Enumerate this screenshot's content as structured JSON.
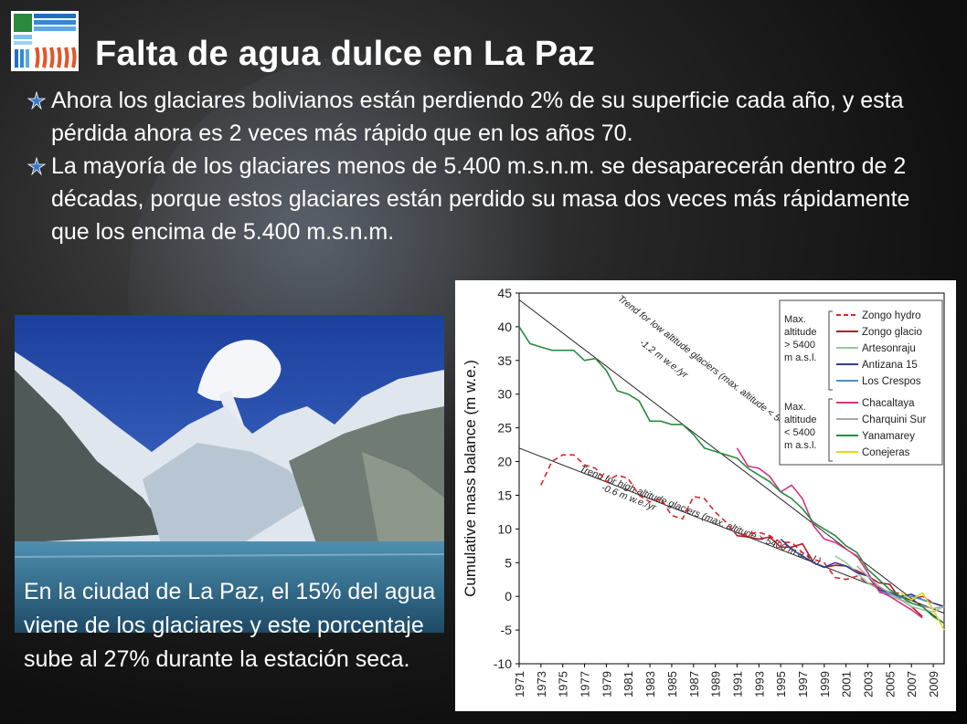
{
  "slide": {
    "title": "Falta de agua dulce en La Paz",
    "bullets": [
      {
        "text": "Ahora los glaciares bolivianos están perdiendo 2% de su superficie cada año, y esta pérdida ahora es 2 veces más rápido que en los años 70."
      },
      {
        "text": "La mayoría de los glaciares menos de 5.400 m.s.n.m. se desaparecerán dentro de 2 décadas, porque estos glaciares están perdido su masa dos veces más rápidamente que los encima de 5.400 m.s.n.m."
      }
    ],
    "caption": "En la ciudad de La Paz, el 15% del agua viene de los glaciares y este porcentaje sube al 27% durante la estación seca."
  },
  "colors": {
    "bullet_star": "#3a78c8",
    "text": "#ffffff"
  },
  "chart_data": {
    "type": "line",
    "ylabel": "Cumulative mass balance (m w.e.)",
    "xlabel": "",
    "ylim": [
      -10,
      45
    ],
    "yticks": [
      -10,
      -5,
      0,
      5,
      10,
      15,
      20,
      25,
      30,
      35,
      40,
      45
    ],
    "xticks": [
      "1971",
      "1973",
      "1975",
      "1977",
      "1979",
      "1981",
      "1983",
      "1985",
      "1987",
      "1989",
      "1991",
      "1993",
      "1995",
      "1997",
      "1999",
      "2001",
      "2003",
      "2005",
      "2007",
      "2009"
    ],
    "xlim": [
      1971,
      2010
    ],
    "trend_labels": {
      "low": [
        "Trend for low altitude glaciers (max. altitude < 5400 m a.s.l.)",
        "-1.2 m w.e./yr"
      ],
      "high": [
        "Trend for high altitude glaciers (max. altitude > 5400 m a.s.l.)",
        "-0.6 m w.e./yr"
      ]
    },
    "trends": [
      {
        "name": "low",
        "points": [
          [
            1971,
            44
          ],
          [
            2010,
            -4
          ]
        ]
      },
      {
        "name": "high",
        "points": [
          [
            1971,
            22
          ],
          [
            2010,
            -2.5
          ]
        ]
      }
    ],
    "legend_groups": [
      {
        "label": [
          "Max.",
          "altitude",
          "> 5400",
          "m a.s.l."
        ],
        "series": [
          "Zongo hydro",
          "Zongo glacio",
          "Artesonraju",
          "Antizana 15",
          "Los Crespos"
        ]
      },
      {
        "label": [
          "Max.",
          "altitude",
          "< 5400",
          "m a.s.l."
        ],
        "series": [
          "Chacaltaya",
          "Charquini Sur",
          "Yanamarey",
          "Conejeras"
        ]
      }
    ],
    "series": [
      {
        "name": "Zongo hydro",
        "color": "#d8262b",
        "dash": true,
        "points": [
          [
            1973,
            16.5
          ],
          [
            1974,
            20
          ],
          [
            1975,
            21
          ],
          [
            1976,
            21
          ],
          [
            1977,
            19.5
          ],
          [
            1978,
            19
          ],
          [
            1979,
            17
          ],
          [
            1980,
            18
          ],
          [
            1981,
            17.5
          ],
          [
            1982,
            15
          ],
          [
            1983,
            14
          ],
          [
            1984,
            14.5
          ],
          [
            1985,
            12
          ],
          [
            1986,
            11.5
          ],
          [
            1987,
            14.8
          ],
          [
            1988,
            14.5
          ],
          [
            1989,
            12.5
          ],
          [
            1990,
            11
          ],
          [
            1991,
            9
          ],
          [
            1992,
            9.3
          ],
          [
            1993,
            9.5
          ],
          [
            1994,
            9
          ],
          [
            1995,
            8
          ],
          [
            1996,
            8
          ],
          [
            1997,
            6.5
          ],
          [
            1998,
            5.5
          ],
          [
            1999,
            5
          ],
          [
            2000,
            2.8
          ],
          [
            2001,
            2.5
          ],
          [
            2002,
            3
          ],
          [
            2003,
            2
          ],
          [
            2004,
            1.5
          ],
          [
            2005,
            0.5
          ],
          [
            2006,
            0.5
          ],
          [
            2007,
            -0.5
          ],
          [
            2008,
            0
          ],
          [
            2009,
            -1
          ],
          [
            2010,
            -1.5
          ]
        ]
      },
      {
        "name": "Zongo glacio",
        "color": "#b21a2a",
        "dash": false,
        "points": [
          [
            1991,
            9
          ],
          [
            1992,
            8.8
          ],
          [
            1993,
            8.5
          ],
          [
            1994,
            8.8
          ],
          [
            1995,
            7.3
          ],
          [
            1996,
            7.3
          ],
          [
            1997,
            7.8
          ],
          [
            1998,
            5
          ],
          [
            1999,
            4.3
          ],
          [
            2000,
            4.6
          ],
          [
            2001,
            4.5
          ],
          [
            2002,
            3.8
          ],
          [
            2003,
            3
          ],
          [
            2004,
            2
          ],
          [
            2005,
            1.8
          ],
          [
            2006,
            -0.5
          ],
          [
            2007,
            -1.5
          ],
          [
            2008,
            -3
          ]
        ]
      },
      {
        "name": "Artesonraju",
        "color": "#9bc79b",
        "dash": false,
        "points": [
          [
            2000,
            6
          ],
          [
            2001,
            5
          ],
          [
            2002,
            3.5
          ],
          [
            2003,
            2
          ],
          [
            2004,
            1
          ],
          [
            2005,
            0
          ],
          [
            2006,
            -0.5
          ],
          [
            2007,
            -1.5
          ],
          [
            2008,
            -2
          ],
          [
            2009,
            -2.3
          ],
          [
            2010,
            -1.5
          ]
        ]
      },
      {
        "name": "Antizana 15",
        "color": "#2f3f8f",
        "dash": false,
        "points": [
          [
            1995,
            8.5
          ],
          [
            1996,
            7
          ],
          [
            1997,
            6
          ],
          [
            1998,
            5
          ],
          [
            1999,
            4.3
          ],
          [
            2000,
            5
          ],
          [
            2001,
            4.5
          ],
          [
            2002,
            3.5
          ],
          [
            2003,
            3
          ],
          [
            2004,
            1
          ],
          [
            2005,
            0.5
          ],
          [
            2006,
            0
          ],
          [
            2007,
            0.3
          ],
          [
            2008,
            -0.5
          ],
          [
            2009,
            -1
          ],
          [
            2010,
            -1.5
          ]
        ]
      },
      {
        "name": "Los Crespos",
        "color": "#4a8fd4",
        "dash": false,
        "points": [
          [
            2004,
            0.6
          ],
          [
            2005,
            0.3
          ],
          [
            2006,
            -0.2
          ],
          [
            2007,
            0
          ],
          [
            2008,
            -0.5
          ],
          [
            2009,
            -1
          ]
        ]
      },
      {
        "name": "Chacaltaya",
        "color": "#d63384",
        "dash": false,
        "points": [
          [
            1991,
            22
          ],
          [
            1992,
            19.3
          ],
          [
            1993,
            19
          ],
          [
            1994,
            17.8
          ],
          [
            1995,
            15.5
          ],
          [
            1996,
            16.5
          ],
          [
            1997,
            14.5
          ],
          [
            1998,
            10.5
          ],
          [
            1999,
            8.5
          ],
          [
            2000,
            8
          ],
          [
            2001,
            7
          ],
          [
            2002,
            6
          ],
          [
            2003,
            3.5
          ],
          [
            2004,
            0.8
          ],
          [
            2005,
            0
          ],
          [
            2006,
            -1
          ],
          [
            2007,
            -2
          ],
          [
            2008,
            -3.2
          ]
        ]
      },
      {
        "name": "Charquini Sur",
        "color": "#a8a8a8",
        "dash": false,
        "points": [
          [
            2002,
            4.5
          ],
          [
            2003,
            3
          ],
          [
            2004,
            1.5
          ],
          [
            2005,
            0.5
          ],
          [
            2006,
            -0.5
          ],
          [
            2007,
            -1
          ],
          [
            2008,
            -1.5
          ],
          [
            2009,
            -1.8
          ],
          [
            2010,
            -1.5
          ]
        ]
      },
      {
        "name": "Yanamarey",
        "color": "#2a8a3e",
        "dash": false,
        "points": [
          [
            1971,
            40
          ],
          [
            1972,
            37.5
          ],
          [
            1973,
            37
          ],
          [
            1974,
            36.5
          ],
          [
            1975,
            36.5
          ],
          [
            1976,
            36.5
          ],
          [
            1977,
            35
          ],
          [
            1978,
            35.3
          ],
          [
            1979,
            33.5
          ],
          [
            1980,
            30.5
          ],
          [
            1981,
            30
          ],
          [
            1982,
            29
          ],
          [
            1983,
            26
          ],
          [
            1984,
            26
          ],
          [
            1985,
            25.5
          ],
          [
            1986,
            25.5
          ],
          [
            1987,
            24
          ],
          [
            1988,
            22
          ],
          [
            1989,
            21.5
          ],
          [
            1990,
            21
          ],
          [
            1991,
            20.5
          ],
          [
            1992,
            19
          ],
          [
            1993,
            18
          ],
          [
            1994,
            17
          ],
          [
            1995,
            15.5
          ],
          [
            1996,
            14.5
          ],
          [
            1997,
            13
          ],
          [
            1998,
            11
          ],
          [
            1999,
            10
          ],
          [
            2000,
            9
          ],
          [
            2001,
            7.5
          ],
          [
            2002,
            6.5
          ],
          [
            2003,
            4
          ],
          [
            2004,
            2.5
          ],
          [
            2005,
            1
          ],
          [
            2006,
            0
          ],
          [
            2007,
            -1
          ],
          [
            2008,
            -1.5
          ],
          [
            2009,
            -3
          ],
          [
            2010,
            -4
          ]
        ]
      },
      {
        "name": "Conejeras",
        "color": "#e8d51c",
        "dash": false,
        "points": [
          [
            2006,
            0.5
          ],
          [
            2007,
            -0.5
          ],
          [
            2008,
            0.5
          ],
          [
            2009,
            -2
          ],
          [
            2010,
            -5
          ]
        ]
      }
    ]
  }
}
